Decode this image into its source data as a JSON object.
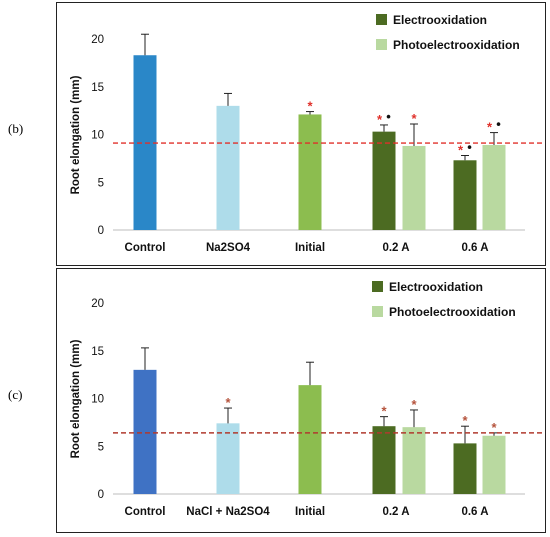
{
  "panels": [
    {
      "label": "(b)",
      "ylabel": "Root elongation (mm)",
      "ylim": [
        0,
        20
      ],
      "yticks": [
        0,
        5,
        10,
        15,
        20
      ],
      "reference_line": 9.1,
      "reference_color": "#e0302a",
      "marker_color": "#e0302a",
      "legend": [
        {
          "label": "Electrooxidation",
          "color": "#4c6b22"
        },
        {
          "label": "Photoelectrooxidation",
          "color": "#b9d9a0"
        }
      ]
    },
    {
      "label": "(c)",
      "ylabel": "Root elongation (mm)",
      "ylim": [
        0,
        20
      ],
      "yticks": [
        0,
        5,
        10,
        15,
        20
      ],
      "reference_line": 6.4,
      "reference_color": "#b03a2e",
      "marker_color": "#b5533c",
      "legend": [
        {
          "label": "Electrooxidation",
          "color": "#4c6b22"
        },
        {
          "label": "Photoelectrooxidation",
          "color": "#b9d9a0"
        }
      ]
    }
  ],
  "chart_data": [
    {
      "type": "bar",
      "ylabel": "Root elongation (mm)",
      "ylim": [
        0,
        20
      ],
      "categories": [
        "Control",
        "Na2SO4",
        "Initial",
        "0.2 A",
        "0.6 A"
      ],
      "bars": [
        {
          "category": "Control",
          "value": 18.3,
          "error": 2.2,
          "color": "#2a87c8",
          "markers": ""
        },
        {
          "category": "Na2SO4",
          "value": 13.0,
          "error": 1.3,
          "color": "#aedcea",
          "markers": ""
        },
        {
          "category": "Initial",
          "value": 12.1,
          "error": 0.3,
          "color": "#8cbd4f",
          "markers": "*"
        },
        {
          "category": "0.2 A",
          "series": "Electrooxidation",
          "value": 10.3,
          "error": 0.7,
          "color": "#4c6b22",
          "markers": "*•"
        },
        {
          "category": "0.2 A",
          "series": "Photoelectrooxidation",
          "value": 8.8,
          "error": 2.3,
          "color": "#b9d9a0",
          "markers": "*"
        },
        {
          "category": "0.6 A",
          "series": "Electrooxidation",
          "value": 7.3,
          "error": 0.5,
          "color": "#4c6b22",
          "markers": "*•"
        },
        {
          "category": "0.6 A",
          "series": "Photoelectrooxidation",
          "value": 8.9,
          "error": 1.3,
          "color": "#b9d9a0",
          "markers": "*•"
        }
      ],
      "reference_line": 9.1
    },
    {
      "type": "bar",
      "ylabel": "Root elongation (mm)",
      "ylim": [
        0,
        20
      ],
      "categories": [
        "Control",
        "NaCl + Na2SO4",
        "Initial",
        "0.2 A",
        "0.6 A"
      ],
      "bars": [
        {
          "category": "Control",
          "value": 13.0,
          "error": 2.3,
          "color": "#3f72c4",
          "markers": ""
        },
        {
          "category": "NaCl + Na2SO4",
          "value": 7.4,
          "error": 1.6,
          "color": "#aedcea",
          "markers": "*"
        },
        {
          "category": "Initial",
          "value": 11.4,
          "error": 2.4,
          "color": "#8cbd4f",
          "markers": ""
        },
        {
          "category": "0.2 A",
          "series": "Electrooxidation",
          "value": 7.1,
          "error": 1.0,
          "color": "#4c6b22",
          "markers": "*"
        },
        {
          "category": "0.2 A",
          "series": "Photoelectrooxidation",
          "value": 7.0,
          "error": 1.8,
          "color": "#b9d9a0",
          "markers": "*"
        },
        {
          "category": "0.6 A",
          "series": "Electrooxidation",
          "value": 5.3,
          "error": 1.8,
          "color": "#4c6b22",
          "markers": "*"
        },
        {
          "category": "0.6 A",
          "series": "Photoelectrooxidation",
          "value": 6.1,
          "error": 0.3,
          "color": "#b9d9a0",
          "markers": "*"
        }
      ],
      "reference_line": 6.4
    }
  ]
}
